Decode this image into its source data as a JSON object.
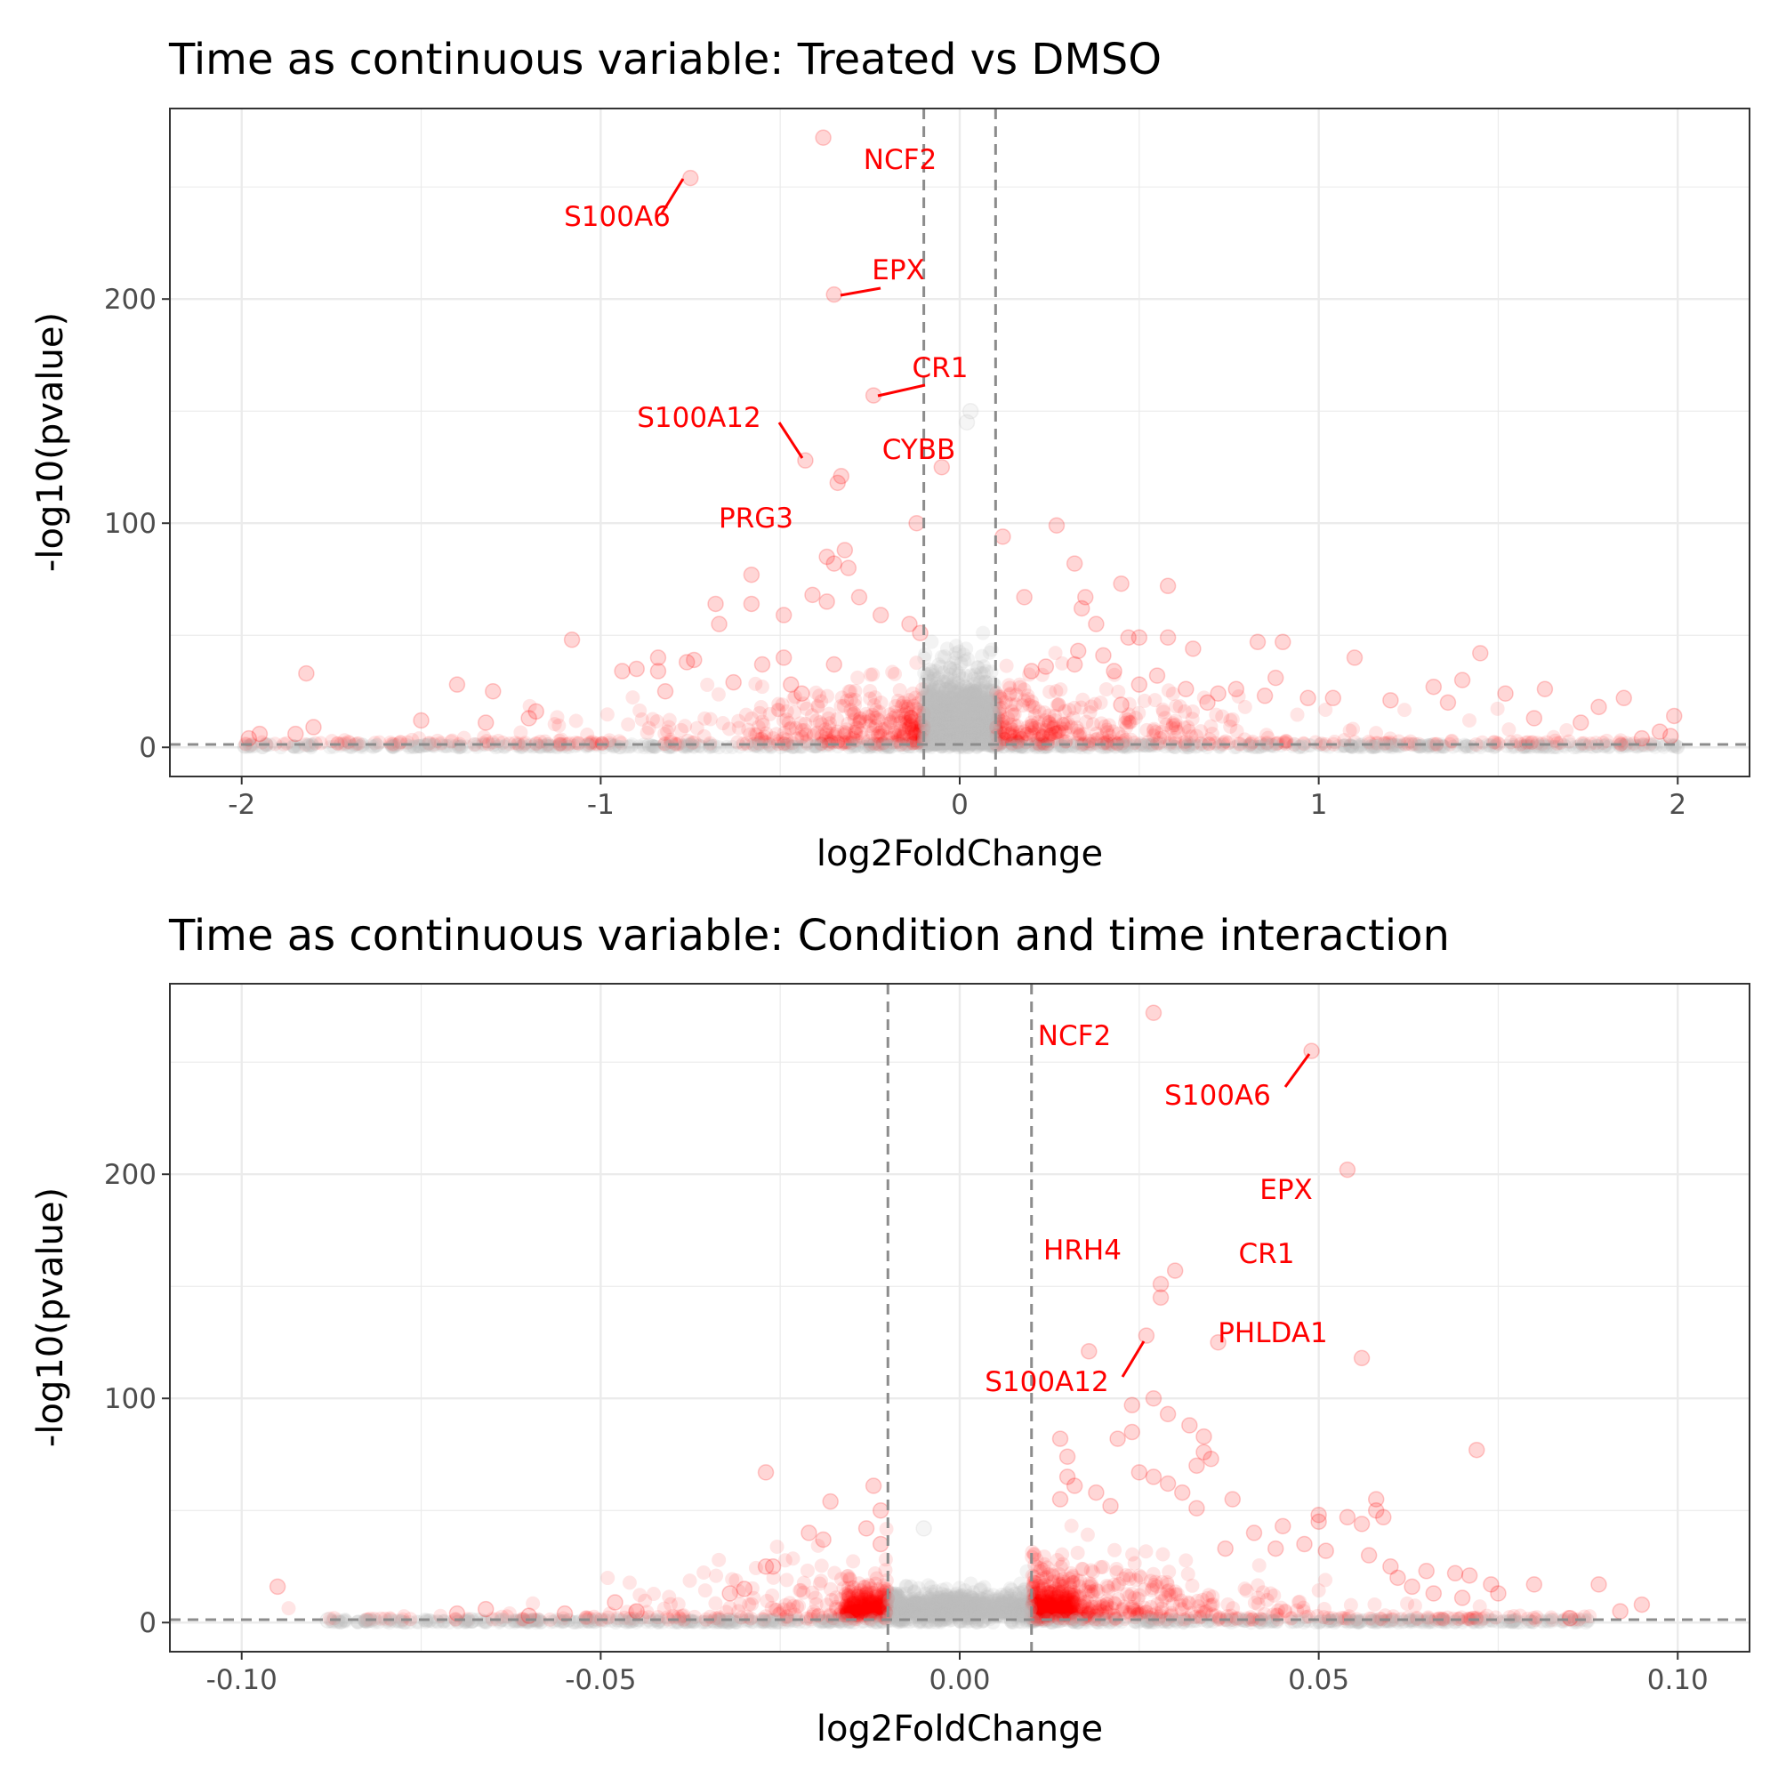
{
  "chart_data": [
    {
      "type": "scatter",
      "title": "Time as continuous variable: Treated vs DMSO",
      "xlabel": "log2FoldChange",
      "ylabel": "-log10(pvalue)",
      "xlim": [
        -2.2,
        2.2
      ],
      "ylim": [
        -13,
        285
      ],
      "x_ticks": [
        -2,
        -1,
        0,
        1,
        2
      ],
      "x_tick_labels": [
        "-2",
        "-1",
        "0",
        "1",
        "2"
      ],
      "y_ticks": [
        0,
        100,
        200
      ],
      "y_tick_labels": [
        "0",
        "100",
        "200"
      ],
      "fc_threshold": 0.1,
      "p_threshold": 1.3,
      "grid": true,
      "legend": "none",
      "colors": {
        "significant": "#ff0000",
        "not_significant": "#bebebe",
        "threshold_line": "#8c8c8c",
        "panel_border": "#333333",
        "grid": "#ebebeb"
      },
      "labeled_genes": [
        {
          "gene": "NCF2",
          "x": -0.38,
          "y": 272
        },
        {
          "gene": "S100A6",
          "x": -0.75,
          "y": 254
        },
        {
          "gene": "EPX",
          "x": -0.35,
          "y": 202
        },
        {
          "gene": "CR1",
          "x": -0.24,
          "y": 157
        },
        {
          "gene": "S100A12",
          "x": -0.43,
          "y": 128
        },
        {
          "gene": "CYBB",
          "x": -0.05,
          "y": 125
        },
        {
          "gene": "PRG3",
          "x": -0.12,
          "y": 100
        }
      ],
      "points": [
        [
          -0.33,
          121
        ],
        [
          -0.34,
          118
        ],
        [
          0.03,
          150
        ],
        [
          0.02,
          145
        ],
        [
          0.12,
          94
        ],
        [
          0.27,
          99
        ],
        [
          -0.32,
          88
        ],
        [
          -0.37,
          85
        ],
        [
          -0.35,
          82
        ],
        [
          -0.31,
          80
        ],
        [
          0.32,
          82
        ],
        [
          0.45,
          73
        ],
        [
          0.58,
          72
        ],
        [
          -0.58,
          77
        ],
        [
          -0.68,
          64
        ],
        [
          -0.58,
          64
        ],
        [
          0.35,
          67
        ],
        [
          0.34,
          62
        ],
        [
          -0.41,
          68
        ],
        [
          -0.37,
          65
        ],
        [
          -0.28,
          67
        ],
        [
          -0.22,
          59
        ],
        [
          0.18,
          67
        ],
        [
          0.38,
          55
        ],
        [
          -0.67,
          55
        ],
        [
          -0.49,
          59
        ],
        [
          -0.14,
          55
        ],
        [
          -0.11,
          51
        ],
        [
          0.47,
          49
        ],
        [
          0.5,
          49
        ],
        [
          0.58,
          49
        ],
        [
          0.65,
          44
        ],
        [
          0.83,
          47
        ],
        [
          0.9,
          47
        ],
        [
          -1.08,
          48
        ],
        [
          0.33,
          43
        ],
        [
          0.4,
          41
        ],
        [
          1.1,
          40
        ],
        [
          1.45,
          42
        ],
        [
          -0.84,
          40
        ],
        [
          -0.76,
          38
        ],
        [
          -0.74,
          39
        ],
        [
          -0.49,
          40
        ],
        [
          -0.55,
          37
        ],
        [
          -0.35,
          37
        ],
        [
          -0.9,
          35
        ],
        [
          0.32,
          37
        ],
        [
          0.24,
          36
        ],
        [
          0.2,
          34
        ],
        [
          0.43,
          34
        ],
        [
          0.55,
          32
        ],
        [
          -1.82,
          33
        ],
        [
          -0.94,
          34
        ],
        [
          -0.84,
          34
        ],
        [
          0.88,
          31
        ],
        [
          1.4,
          30
        ],
        [
          -1.4,
          28
        ],
        [
          -0.63,
          29
        ],
        [
          -0.47,
          28
        ],
        [
          0.5,
          28
        ],
        [
          0.63,
          26
        ],
        [
          0.77,
          26
        ],
        [
          1.32,
          27
        ],
        [
          1.63,
          26
        ],
        [
          -1.3,
          25
        ],
        [
          -0.82,
          25
        ],
        [
          -0.44,
          24
        ],
        [
          0.72,
          24
        ],
        [
          1.52,
          24
        ],
        [
          0.85,
          23
        ],
        [
          1.04,
          22
        ],
        [
          1.85,
          22
        ],
        [
          0.69,
          20
        ],
        [
          0.97,
          22
        ],
        [
          1.2,
          21
        ],
        [
          1.36,
          20
        ],
        [
          -1.18,
          16
        ],
        [
          0.45,
          19
        ],
        [
          1.78,
          18
        ],
        [
          1.99,
          14
        ],
        [
          -1.5,
          12
        ],
        [
          -1.32,
          11
        ],
        [
          1.6,
          13
        ],
        [
          1.73,
          11
        ],
        [
          -1.2,
          13
        ],
        [
          -1.98,
          4
        ],
        [
          -1.95,
          6
        ],
        [
          -1.85,
          6
        ],
        [
          -1.8,
          9
        ],
        [
          1.9,
          4
        ],
        [
          1.95,
          7
        ],
        [
          1.98,
          5
        ]
      ]
    },
    {
      "type": "scatter",
      "title": "Time as continuous variable: Condition and time interaction",
      "xlabel": "log2FoldChange",
      "ylabel": "-log10(pvalue)",
      "xlim": [
        -0.11,
        0.11
      ],
      "ylim": [
        -13,
        285
      ],
      "x_ticks": [
        -0.1,
        -0.05,
        0,
        0.05,
        0.1
      ],
      "x_tick_labels": [
        "-0.10",
        "-0.05",
        "0.00",
        "0.05",
        "0.10"
      ],
      "y_ticks": [
        0,
        100,
        200
      ],
      "y_tick_labels": [
        "0",
        "100",
        "200"
      ],
      "fc_threshold": 0.01,
      "p_threshold": 1.3,
      "grid": true,
      "legend": "none",
      "colors": {
        "significant": "#ff0000",
        "not_significant": "#bebebe",
        "threshold_line": "#8c8c8c",
        "panel_border": "#333333",
        "grid": "#ebebeb"
      },
      "labeled_genes": [
        {
          "gene": "NCF2",
          "x": 0.027,
          "y": 272
        },
        {
          "gene": "S100A6",
          "x": 0.049,
          "y": 255
        },
        {
          "gene": "EPX",
          "x": 0.054,
          "y": 202
        },
        {
          "gene": "HRH4",
          "x": 0.028,
          "y": 151
        },
        {
          "gene": "CR1",
          "x": 0.03,
          "y": 157
        },
        {
          "gene": "PHLDA1",
          "x": 0.036,
          "y": 125
        },
        {
          "gene": "S100A12",
          "x": 0.026,
          "y": 128
        }
      ],
      "points": [
        [
          0.028,
          145
        ],
        [
          0.056,
          118
        ],
        [
          0.018,
          121
        ],
        [
          0.027,
          100
        ],
        [
          0.024,
          97
        ],
        [
          0.029,
          93
        ],
        [
          0.032,
          88
        ],
        [
          0.024,
          85
        ],
        [
          0.034,
          83
        ],
        [
          0.072,
          77
        ],
        [
          0.014,
          82
        ],
        [
          0.022,
          82
        ],
        [
          0.034,
          76
        ],
        [
          0.035,
          73
        ],
        [
          0.015,
          74
        ],
        [
          0.033,
          70
        ],
        [
          0.015,
          65
        ],
        [
          0.025,
          67
        ],
        [
          0.027,
          65
        ],
        [
          0.029,
          62
        ],
        [
          -0.027,
          67
        ],
        [
          0.016,
          61
        ],
        [
          0.019,
          58
        ],
        [
          0.031,
          58
        ],
        [
          0.038,
          55
        ],
        [
          0.058,
          55
        ],
        [
          0.058,
          50
        ],
        [
          0.059,
          47
        ],
        [
          0.05,
          48
        ],
        [
          -0.018,
          54
        ],
        [
          -0.012,
          61
        ],
        [
          -0.011,
          50
        ],
        [
          0.014,
          55
        ],
        [
          0.021,
          52
        ],
        [
          0.033,
          51
        ],
        [
          0.05,
          45
        ],
        [
          0.054,
          47
        ],
        [
          0.056,
          44
        ],
        [
          0.045,
          43
        ],
        [
          -0.021,
          40
        ],
        [
          -0.019,
          37
        ],
        [
          -0.013,
          42
        ],
        [
          -0.011,
          35
        ],
        [
          -0.005,
          42
        ],
        [
          0.041,
          40
        ],
        [
          0.048,
          35
        ],
        [
          0.037,
          33
        ],
        [
          0.044,
          33
        ],
        [
          0.051,
          32
        ],
        [
          0.057,
          30
        ],
        [
          0.065,
          23
        ],
        [
          0.069,
          22
        ],
        [
          0.071,
          21
        ],
        [
          0.074,
          17
        ],
        [
          0.08,
          17
        ],
        [
          0.089,
          17
        ],
        [
          0.095,
          8
        ],
        [
          0.092,
          5
        ],
        [
          0.085,
          2
        ],
        [
          -0.027,
          25
        ],
        [
          -0.026,
          25
        ],
        [
          -0.03,
          15
        ],
        [
          -0.032,
          13
        ],
        [
          -0.095,
          16
        ],
        [
          -0.088,
          1
        ],
        [
          -0.07,
          4
        ],
        [
          -0.068,
          1
        ],
        [
          -0.066,
          6
        ],
        [
          -0.06,
          3
        ],
        [
          -0.055,
          4
        ],
        [
          -0.048,
          9
        ],
        [
          -0.045,
          5
        ],
        [
          0.06,
          25
        ],
        [
          0.061,
          20
        ],
        [
          0.063,
          16
        ],
        [
          0.066,
          13
        ],
        [
          0.07,
          11
        ],
        [
          0.075,
          13
        ]
      ]
    }
  ]
}
